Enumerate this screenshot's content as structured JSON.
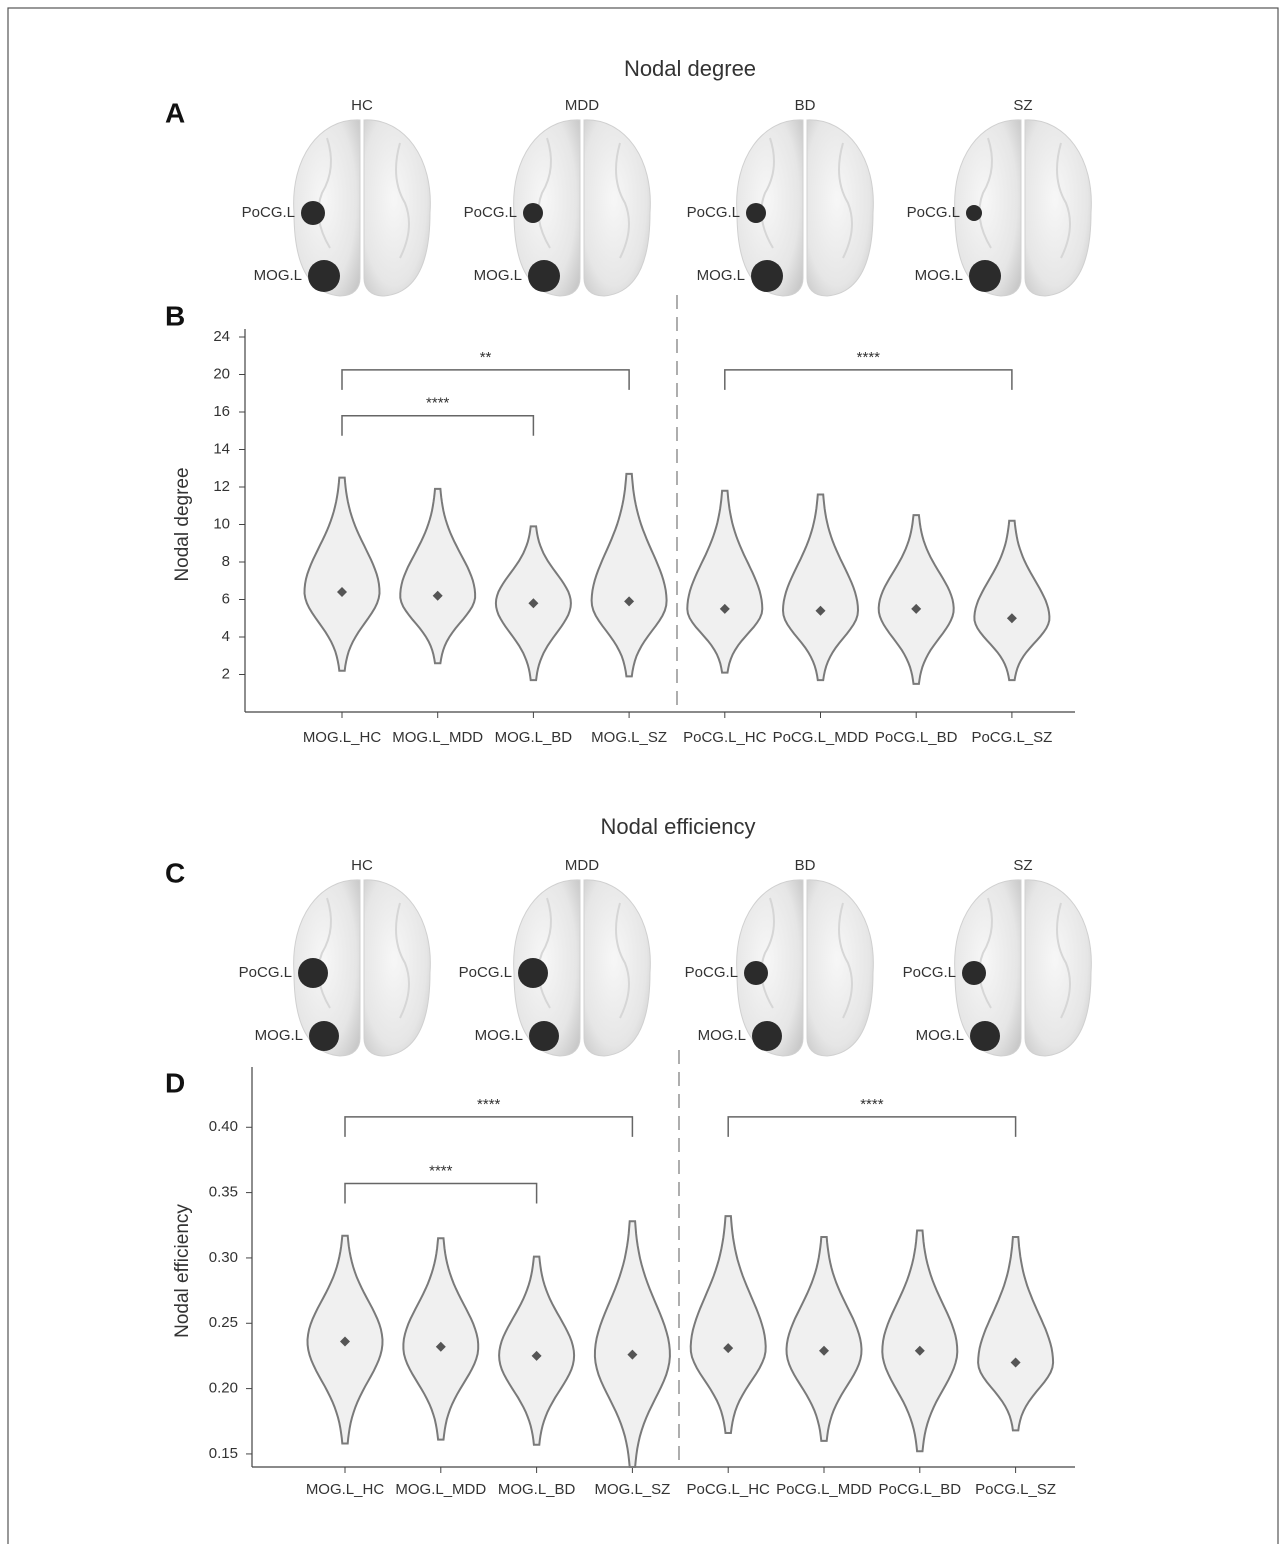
{
  "panels": [
    {
      "title": "Nodal degree",
      "brain_label": "A",
      "chart_label": "B",
      "groups": [
        {
          "name": "HC",
          "nodes": [
            "PoCG.L",
            "MOG.L"
          ]
        },
        {
          "name": "MDD",
          "nodes": [
            "PoCG.L",
            "MOG.L"
          ]
        },
        {
          "name": "BD",
          "nodes": [
            "PoCG.L",
            "MOG.L"
          ]
        },
        {
          "name": "SZ",
          "nodes": [
            "PoCG.L",
            "MOG.L"
          ]
        }
      ]
    },
    {
      "title": "Nodal efficiency",
      "brain_label": "C",
      "chart_label": "D",
      "groups": [
        {
          "name": "HC",
          "nodes": [
            "PoCG.L",
            "MOG.L"
          ]
        },
        {
          "name": "MDD",
          "nodes": [
            "PoCG.L",
            "MOG.L"
          ]
        },
        {
          "name": "BD",
          "nodes": [
            "PoCG.L",
            "MOG.L"
          ]
        },
        {
          "name": "SZ",
          "nodes": [
            "PoCG.L",
            "MOG.L"
          ]
        }
      ]
    }
  ],
  "chart_data": [
    {
      "type": "violin",
      "ylabel": "Nodal degree",
      "categories": [
        "MOG.L_HC",
        "MOG.L_MDD",
        "MOG.L_BD",
        "MOG.L_SZ",
        "PoCG.L_HC",
        "PoCG.L_MDD",
        "PoCG.L_BD",
        "PoCG.L_SZ"
      ],
      "means": [
        6.4,
        6.2,
        5.8,
        5.9,
        5.5,
        5.4,
        5.5,
        5.0
      ],
      "mins": [
        2.2,
        2.6,
        1.7,
        1.9,
        2.1,
        1.7,
        1.5,
        1.7
      ],
      "maxs": [
        12.5,
        11.9,
        9.9,
        12.7,
        11.8,
        11.6,
        10.5,
        10.2
      ],
      "color": "#7a7a7a",
      "ylim": [
        0,
        24
      ],
      "yticks": [
        2,
        4,
        6,
        8,
        10,
        12,
        14,
        16,
        20,
        24
      ],
      "brackets": [
        {
          "from": "MOG.L_HC",
          "to": "MOG.L_SZ",
          "y": 20.5,
          "label": "**"
        },
        {
          "from": "MOG.L_HC",
          "to": "MOG.L_BD",
          "y": 15.8,
          "label": "****"
        },
        {
          "from": "PoCG.L_HC",
          "to": "PoCG.L_SZ",
          "y": 20.5,
          "label": "****"
        }
      ]
    },
    {
      "type": "violin",
      "ylabel": "Nodal efficiency",
      "categories": [
        "MOG.L_HC",
        "MOG.L_MDD",
        "MOG.L_BD",
        "MOG.L_SZ",
        "PoCG.L_HC",
        "PoCG.L_MDD",
        "PoCG.L_BD",
        "PoCG.L_SZ"
      ],
      "means": [
        0.236,
        0.232,
        0.225,
        0.226,
        0.231,
        0.229,
        0.229,
        0.22
      ],
      "mins": [
        0.158,
        0.161,
        0.157,
        0.14,
        0.166,
        0.16,
        0.152,
        0.168
      ],
      "maxs": [
        0.317,
        0.315,
        0.301,
        0.328,
        0.332,
        0.316,
        0.321,
        0.316
      ],
      "color": "#7a7a7a",
      "ylim": [
        0.14,
        0.44
      ],
      "yticks": [
        0.15,
        {
          "value": 0.2,
          "label": "0.20"
        },
        0.25,
        {
          "value": 0.3,
          "label": "0.30"
        },
        0.35,
        {
          "value": 0.4,
          "label": "0.40"
        }
      ],
      "brackets": [
        {
          "from": "MOG.L_HC",
          "to": "MOG.L_SZ",
          "y": 0.408,
          "label": "****"
        },
        {
          "from": "MOG.L_HC",
          "to": "MOG.L_BD",
          "y": 0.357,
          "label": "****"
        },
        {
          "from": "PoCG.L_HC",
          "to": "PoCG.L_SZ",
          "y": 0.408,
          "label": "****"
        }
      ]
    }
  ]
}
